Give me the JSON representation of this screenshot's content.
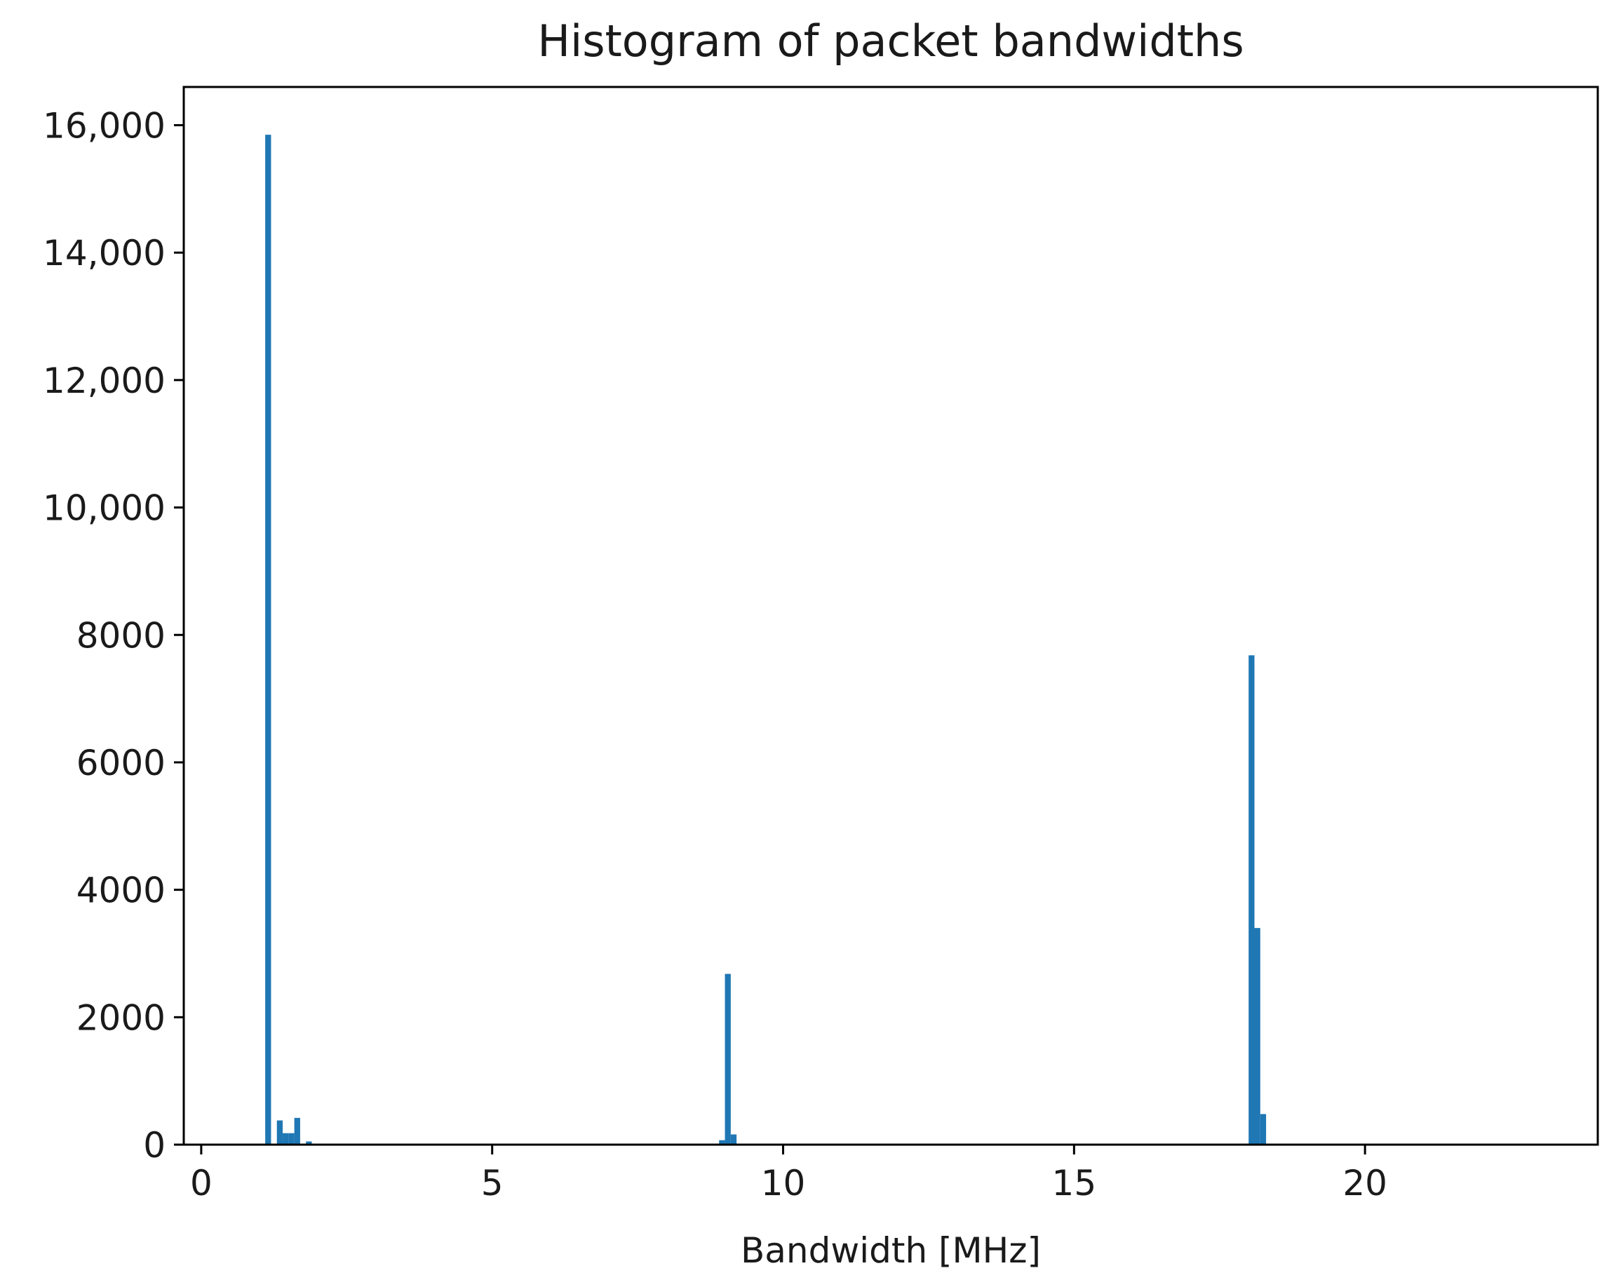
{
  "chart_data": {
    "type": "bar",
    "title": "Histogram of packet bandwidths",
    "xlabel": "Bandwidth [MHz]",
    "ylabel": "",
    "xlim": [
      -0.3,
      24.0
    ],
    "ylim": [
      0,
      16600
    ],
    "x_ticks": [
      {
        "value": 0,
        "label": "0"
      },
      {
        "value": 5,
        "label": "5"
      },
      {
        "value": 10,
        "label": "10"
      },
      {
        "value": 15,
        "label": "15"
      },
      {
        "value": 20,
        "label": "20"
      }
    ],
    "y_ticks": [
      {
        "value": 0,
        "label": "0"
      },
      {
        "value": 2000,
        "label": "2000"
      },
      {
        "value": 4000,
        "label": "4000"
      },
      {
        "value": 6000,
        "label": "6000"
      },
      {
        "value": 8000,
        "label": "8000"
      },
      {
        "value": 10000,
        "label": "10,000"
      },
      {
        "value": 12000,
        "label": "12,000"
      },
      {
        "value": 14000,
        "label": "14,000"
      },
      {
        "value": 16000,
        "label": "16,000"
      }
    ],
    "bin_width": 0.1,
    "bars": [
      {
        "x": 1.1,
        "count": 15850
      },
      {
        "x": 1.3,
        "count": 380
      },
      {
        "x": 1.4,
        "count": 180
      },
      {
        "x": 1.5,
        "count": 180
      },
      {
        "x": 1.6,
        "count": 420
      },
      {
        "x": 1.8,
        "count": 50
      },
      {
        "x": 8.9,
        "count": 70
      },
      {
        "x": 9.0,
        "count": 2680
      },
      {
        "x": 9.1,
        "count": 160
      },
      {
        "x": 18.0,
        "count": 7680
      },
      {
        "x": 18.1,
        "count": 3400
      },
      {
        "x": 18.2,
        "count": 480
      }
    ],
    "colors": {
      "bar": "#1f77b4",
      "axes": "#000000"
    },
    "grid": false
  }
}
